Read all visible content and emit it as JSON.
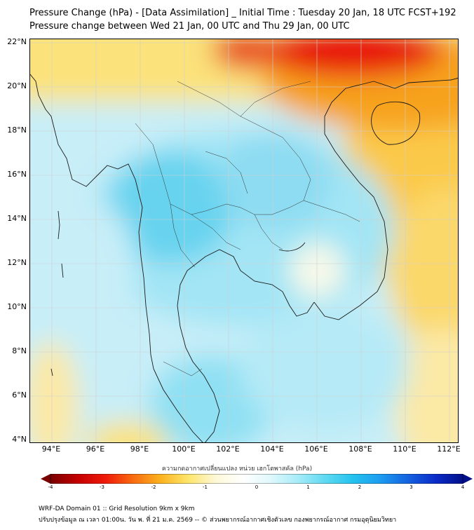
{
  "title": {
    "line1": "Pressure Change (hPa) - [Data Assimilation] _ Initial Time : Tuesday 20 Jan, 18 UTC FCST+192",
    "line2": "Pressure change between Wed 21 Jan, 00 UTC and Thu 29 Jan, 00 UTC"
  },
  "map": {
    "lat_labels": [
      "22°N",
      "20°N",
      "18°N",
      "16°N",
      "14°N",
      "12°N",
      "10°N",
      "8°N",
      "6°N",
      "4°N"
    ],
    "lon_labels": [
      "94°E",
      "96°E",
      "98°E",
      "100°E",
      "102°E",
      "104°E",
      "106°E",
      "108°E",
      "110°E",
      "112°E"
    ],
    "lat_values": [
      22,
      20,
      18,
      16,
      14,
      12,
      10,
      8,
      6,
      4
    ],
    "lon_values": [
      94,
      96,
      98,
      100,
      102,
      104,
      106,
      108,
      110,
      112
    ],
    "extent": {
      "lon_min": 93,
      "lon_max": 112.4,
      "lat_min": 4,
      "lat_max": 22.3
    },
    "colors": {
      "strong_rise": "#e8190c",
      "moderate_rise": "#f7a21b",
      "slight_rise": "#fbe27a",
      "neutral": "#f7f9e9",
      "slight_fall": "#d2f3f9",
      "moderate_fall": "#a3e5f5",
      "strong_fall": "#68d3ef",
      "coastline": "#1a1a1a"
    }
  },
  "colorbar": {
    "title": "ความกดอากาศเปลี่ยนแปลง หน่วย เฮกโตพาสคัล (hPa)",
    "ticks": [
      "-4",
      "-3",
      "-2",
      "-1",
      "0",
      "1",
      "2",
      "3",
      "4"
    ],
    "min": -4,
    "max": 4,
    "gradient": [
      "#7a0000",
      "#c40000",
      "#f01a0a",
      "#f86b10",
      "#fbb21f",
      "#fde56a",
      "#fdf8d6",
      "#ffffff",
      "#e0f8fc",
      "#a6ecf8",
      "#5fd9f2",
      "#25c2ee",
      "#1d9cf0",
      "#1463e0",
      "#0b2cc8",
      "#00108a"
    ]
  },
  "footer": {
    "line1": "WRF-DA Domain 01 :: Grid Resolution 9km x 9km",
    "line2": "ปรับปรุงข้อมูล ณ เวลา 01:00น. วัน พ. ที่ 21 ม.ค. 2569 -- © ส่วนพยากรณ์อากาศเชิงตัวเลข กองพยากรณ์อากาศ กรมอุตุนิยมวิทยา"
  }
}
